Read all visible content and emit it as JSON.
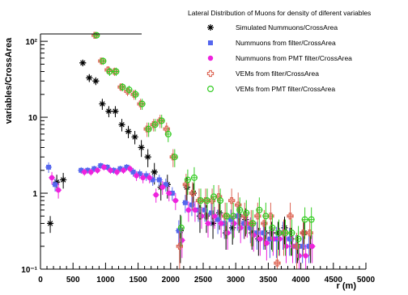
{
  "chart_data": {
    "type": "scatter",
    "title": "Lateral Distribution of Muons for density of diferent variables",
    "xlabel": "r (m)",
    "ylabel": "variables/CrossArea",
    "xlim": [
      0,
      5000
    ],
    "ylim": [
      0.1,
      125
    ],
    "y_scale": "log",
    "grid": false,
    "legend_position": "top-right",
    "x_ticks": [
      "0",
      "500",
      "1000",
      "1500",
      "2000",
      "2500",
      "3000",
      "3500",
      "4000",
      "4500",
      "5000"
    ],
    "y_tick_labels": [
      "10⁻¹",
      "1",
      "10",
      "10²"
    ],
    "series": [
      {
        "name": "Simulated Nummuons/CrossArea",
        "marker": "star",
        "color": "#000000",
        "points": [
          [
            150,
            0.4
          ],
          [
            250,
            1.4
          ],
          [
            350,
            1.5
          ],
          [
            650,
            52
          ],
          [
            750,
            33
          ],
          [
            850,
            30
          ],
          [
            950,
            15
          ],
          [
            1050,
            12
          ],
          [
            1150,
            12
          ],
          [
            1250,
            8
          ],
          [
            1350,
            6.5
          ],
          [
            1450,
            5.5
          ],
          [
            1550,
            4
          ],
          [
            1650,
            3
          ],
          [
            1750,
            1.9
          ],
          [
            1850,
            1.2
          ],
          [
            1950,
            1.3
          ],
          [
            2150,
            0.32
          ],
          [
            2250,
            1.2
          ],
          [
            2350,
            1.0
          ],
          [
            2450,
            0.5
          ],
          [
            2550,
            0.5
          ],
          [
            2650,
            0.4
          ],
          [
            2750,
            0.55
          ],
          [
            2850,
            0.3
          ],
          [
            2950,
            0.35
          ],
          [
            3050,
            0.5
          ],
          [
            3150,
            0.45
          ],
          [
            3250,
            0.3
          ],
          [
            3350,
            0.25
          ],
          [
            3450,
            0.3
          ],
          [
            3550,
            0.3
          ],
          [
            3650,
            0.3
          ],
          [
            3750,
            0.35
          ],
          [
            3850,
            0.25
          ],
          [
            3950,
            0.2
          ],
          [
            4050,
            0.3
          ],
          [
            4150,
            0.2
          ]
        ],
        "errors": [
          0.1,
          0.35,
          0.35,
          5,
          4,
          3.5,
          2.5,
          2,
          2,
          1.5,
          1.2,
          1.1,
          1.0,
          0.8,
          0.6,
          0.4,
          0.45,
          0.2,
          0.4,
          0.35,
          0.2,
          0.2,
          0.15,
          0.22,
          0.12,
          0.14,
          0.2,
          0.18,
          0.12,
          0.1,
          0.12,
          0.12,
          0.12,
          0.14,
          0.1,
          0.08,
          0.12,
          0.08
        ]
      },
      {
        "name": "Nummuons from filter/CrossArea",
        "marker": "square",
        "color": "#5566ee",
        "points": [
          [
            150,
            2.2
          ],
          [
            250,
            1.3
          ],
          [
            650,
            2.0
          ],
          [
            750,
            2.0
          ],
          [
            850,
            2.1
          ],
          [
            950,
            2.3
          ],
          [
            1050,
            2.2
          ],
          [
            1150,
            2.0
          ],
          [
            1250,
            2.1
          ],
          [
            1350,
            2.2
          ],
          [
            1450,
            1.9
          ],
          [
            1550,
            1.8
          ],
          [
            1650,
            1.7
          ],
          [
            1750,
            1.5
          ],
          [
            1850,
            1.5
          ],
          [
            1950,
            1.3
          ],
          [
            2050,
            1.0
          ],
          [
            2150,
            0.32
          ],
          [
            2250,
            0.75
          ],
          [
            2350,
            0.7
          ],
          [
            2450,
            0.6
          ],
          [
            2550,
            0.6
          ],
          [
            2650,
            0.55
          ],
          [
            2750,
            0.45
          ],
          [
            2850,
            0.4
          ],
          [
            2950,
            0.45
          ],
          [
            3050,
            0.5
          ],
          [
            3150,
            0.4
          ],
          [
            3250,
            0.35
          ],
          [
            3350,
            0.3
          ],
          [
            3450,
            0.3
          ],
          [
            3550,
            0.25
          ],
          [
            3650,
            0.25
          ],
          [
            3750,
            0.3
          ],
          [
            3850,
            0.25
          ],
          [
            3950,
            0.2
          ],
          [
            4050,
            0.2
          ],
          [
            4150,
            0.2
          ]
        ],
        "errors": [
          0.35,
          0.25,
          0.2,
          0.2,
          0.2,
          0.22,
          0.2,
          0.2,
          0.2,
          0.22,
          0.25,
          0.25,
          0.25,
          0.25,
          0.25,
          0.25,
          0.2,
          0.12,
          0.2,
          0.2,
          0.18,
          0.18,
          0.18,
          0.16,
          0.15,
          0.16,
          0.18,
          0.15,
          0.13,
          0.12,
          0.12,
          0.11,
          0.11,
          0.12,
          0.1,
          0.08,
          0.08,
          0.08
        ]
      },
      {
        "name": "Nummuons from PMT filter/CrossArea",
        "marker": "circle",
        "color": "#ee22dd",
        "points": [
          [
            150,
            1.6
          ],
          [
            250,
            1.1
          ],
          [
            650,
            1.9
          ],
          [
            750,
            1.9
          ],
          [
            850,
            2.0
          ],
          [
            950,
            2.2
          ],
          [
            1050,
            2.0
          ],
          [
            1150,
            1.9
          ],
          [
            1250,
            2.0
          ],
          [
            1350,
            2.1
          ],
          [
            1450,
            1.7
          ],
          [
            1550,
            1.6
          ],
          [
            1650,
            1.6
          ],
          [
            1750,
            0.95
          ],
          [
            1850,
            1.2
          ],
          [
            1950,
            1.0
          ],
          [
            2050,
            0.8
          ],
          [
            2150,
            0.24
          ],
          [
            2250,
            0.6
          ],
          [
            2350,
            0.6
          ],
          [
            2450,
            0.5
          ],
          [
            2550,
            0.4
          ],
          [
            2650,
            0.5
          ],
          [
            2750,
            0.4
          ],
          [
            2850,
            0.3
          ],
          [
            2950,
            0.4
          ],
          [
            3050,
            0.35
          ],
          [
            3150,
            0.4
          ],
          [
            3250,
            0.28
          ],
          [
            3350,
            0.25
          ],
          [
            3450,
            0.22
          ],
          [
            3550,
            0.25
          ],
          [
            3650,
            0.25
          ],
          [
            3750,
            0.2
          ],
          [
            3850,
            0.2
          ],
          [
            3950,
            0.15
          ],
          [
            4050,
            0.15
          ],
          [
            4150,
            0.2
          ]
        ],
        "errors": [
          0.3,
          0.25,
          0.2,
          0.2,
          0.2,
          0.22,
          0.2,
          0.2,
          0.2,
          0.22,
          0.25,
          0.25,
          0.25,
          0.2,
          0.25,
          0.22,
          0.2,
          0.1,
          0.18,
          0.18,
          0.16,
          0.14,
          0.16,
          0.14,
          0.12,
          0.14,
          0.13,
          0.14,
          0.11,
          0.1,
          0.09,
          0.1,
          0.1,
          0.08,
          0.08,
          0.06,
          0.06,
          0.08
        ]
      },
      {
        "name": "VEMs from filter/CrossArea",
        "marker": "open-cross",
        "color": "#dd6655",
        "points": [
          [
            850,
            120
          ],
          [
            950,
            55
          ],
          [
            1050,
            42
          ],
          [
            1150,
            40
          ],
          [
            1250,
            25
          ],
          [
            1350,
            22
          ],
          [
            1450,
            20
          ],
          [
            1550,
            15
          ],
          [
            1650,
            7
          ],
          [
            1750,
            8
          ],
          [
            1850,
            9
          ],
          [
            1950,
            7
          ],
          [
            2050,
            3
          ],
          [
            2150,
            0.2
          ],
          [
            2250,
            1.3
          ],
          [
            2350,
            1.0
          ],
          [
            2450,
            0.8
          ],
          [
            2550,
            0.8
          ],
          [
            2650,
            0.8
          ],
          [
            2750,
            0.9
          ],
          [
            2850,
            0.5
          ],
          [
            2950,
            0.8
          ],
          [
            3050,
            0.7
          ],
          [
            3150,
            0.5
          ],
          [
            3250,
            0.4
          ],
          [
            3350,
            0.5
          ],
          [
            3450,
            0.4
          ],
          [
            3550,
            0.5
          ],
          [
            3650,
            0.12
          ],
          [
            3750,
            0.3
          ],
          [
            3850,
            0.5
          ],
          [
            3950,
            0.2
          ],
          [
            4050,
            0.3
          ],
          [
            4150,
            0.3
          ]
        ],
        "errors": [
          10,
          6,
          5,
          5,
          3,
          3,
          3,
          2.5,
          1.5,
          1.5,
          1.8,
          1.5,
          0.8,
          0.12,
          0.5,
          0.4,
          0.35,
          0.35,
          0.35,
          0.38,
          0.25,
          0.35,
          0.32,
          0.25,
          0.2,
          0.25,
          0.2,
          0.25,
          0.06,
          0.15,
          0.25,
          0.1,
          0.15,
          0.15
        ]
      },
      {
        "name": "VEMs from PMT filter/CrossArea",
        "marker": "open-circle",
        "color": "#33cc22",
        "points": [
          [
            850,
            120
          ],
          [
            950,
            55
          ],
          [
            1050,
            40
          ],
          [
            1150,
            40
          ],
          [
            1250,
            25
          ],
          [
            1350,
            23
          ],
          [
            1450,
            20
          ],
          [
            1550,
            15
          ],
          [
            1650,
            7
          ],
          [
            1750,
            8
          ],
          [
            1850,
            9
          ],
          [
            1950,
            6
          ],
          [
            2050,
            3
          ],
          [
            2150,
            0.35
          ],
          [
            2250,
            1.5
          ],
          [
            2350,
            1.6
          ],
          [
            2450,
            0.8
          ],
          [
            2550,
            0.8
          ],
          [
            2650,
            0.9
          ],
          [
            2750,
            0.8
          ],
          [
            2850,
            0.5
          ],
          [
            2950,
            0.5
          ],
          [
            3050,
            0.6
          ],
          [
            3150,
            0.55
          ],
          [
            3250,
            0.4
          ],
          [
            3350,
            0.6
          ],
          [
            3450,
            0.5
          ],
          [
            3550,
            0.35
          ],
          [
            3650,
            0.3
          ],
          [
            3750,
            0.3
          ],
          [
            3850,
            0.3
          ],
          [
            3950,
            0.25
          ],
          [
            4050,
            0.45
          ],
          [
            4150,
            0.45
          ]
        ],
        "errors": [
          10,
          6,
          5,
          5,
          3,
          3,
          3,
          2.5,
          1.5,
          1.5,
          1.8,
          1.3,
          0.8,
          0.15,
          0.55,
          0.6,
          0.35,
          0.35,
          0.38,
          0.35,
          0.25,
          0.25,
          0.28,
          0.26,
          0.2,
          0.28,
          0.25,
          0.18,
          0.15,
          0.15,
          0.15,
          0.12,
          0.2,
          0.2
        ]
      }
    ]
  }
}
